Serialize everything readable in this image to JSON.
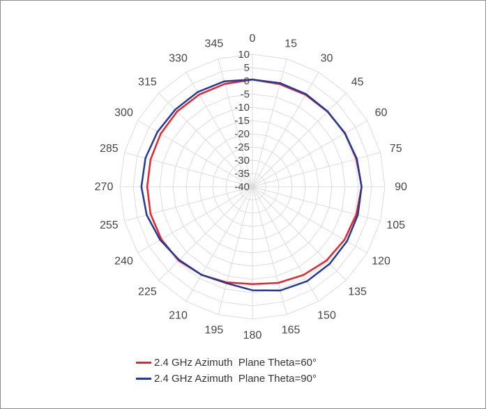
{
  "chart_data": {
    "type": "radar",
    "angle_labels": [
      "0",
      "15",
      "30",
      "45",
      "60",
      "75",
      "90",
      "105",
      "120",
      "135",
      "150",
      "165",
      "180",
      "195",
      "210",
      "225",
      "240",
      "255",
      "270",
      "285",
      "300",
      "315",
      "330",
      "345"
    ],
    "angles_deg": [
      0,
      15,
      30,
      45,
      60,
      75,
      90,
      105,
      120,
      135,
      150,
      165,
      180,
      195,
      210,
      225,
      240,
      255,
      270,
      285,
      300,
      315,
      330,
      345
    ],
    "radial_axis": {
      "min": -40,
      "max": 10,
      "step": 5,
      "tick_labels": [
        "10",
        "5",
        "0",
        "-5",
        "-10",
        "-15",
        "-20",
        "-25",
        "-30",
        "-35",
        "-40"
      ]
    },
    "grid": true,
    "legend_position": "bottom",
    "series": [
      {
        "name": "2.4 GHz Azimuth  Plane Theta=60°",
        "color": "#e3262c",
        "values": [
          0.5,
          0.1,
          0.1,
          0.1,
          0.4,
          0.6,
          1.2,
          0.6,
          0.1,
          -0.5,
          -1.5,
          -2.4,
          -3.2,
          -2.6,
          -1.6,
          -0.6,
          -0.3,
          -0.2,
          -0.3,
          -0.2,
          0.0,
          0.2,
          0.2,
          0.2
        ]
      },
      {
        "name": "2.4 GHz Azimuth  Plane Theta=90°",
        "color": "#22399b",
        "values": [
          0.5,
          0.5,
          0.4,
          0.2,
          0.3,
          0.8,
          1.2,
          1.2,
          1.2,
          1.2,
          1.2,
          0.6,
          -0.9,
          -2.3,
          -1.6,
          -0.9,
          0.2,
          1.3,
          1.9,
          1.8,
          1.4,
          1.2,
          1.3,
          1.2
        ]
      }
    ]
  }
}
